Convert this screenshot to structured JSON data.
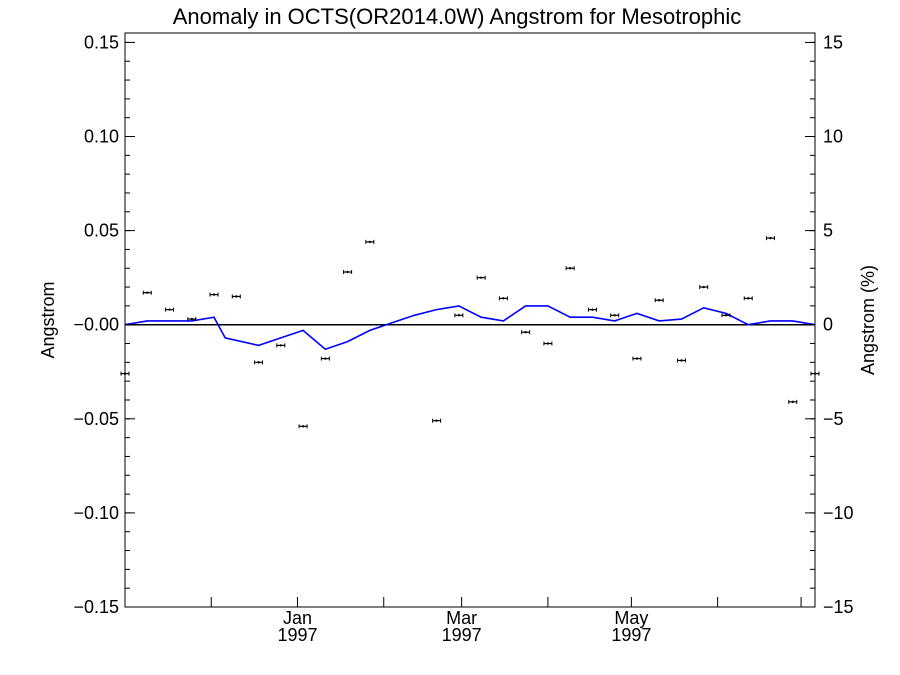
{
  "chart_data": {
    "type": "scatter",
    "title": "Anomaly in OCTS(OR2014.0W) Angstrom for Mesotrophic",
    "ylabel": "Angstrom",
    "y2label": "Angstrom (%)",
    "ylim": [
      -0.15,
      0.155
    ],
    "y2lim": [
      -15,
      15
    ],
    "y_ticks": [
      "-0.15",
      "-0.10",
      "-0.05",
      "-0.00",
      "0.05",
      "0.10",
      "0.15"
    ],
    "y2_ticks": [
      "-15",
      "-10",
      "-5",
      "0",
      "5",
      "10",
      "15"
    ],
    "x_ticks": [
      {
        "month": "Jan",
        "year": "1997"
      },
      {
        "month": "Mar",
        "year": "1997"
      },
      {
        "month": "May",
        "year": "1997"
      }
    ],
    "reference_line": 0,
    "colors": {
      "points": "#000000",
      "line": "#0000ff",
      "zero": "#000000"
    },
    "series": [
      {
        "kind": "points-with-error-bars",
        "points": [
          {
            "x": "1996-10-31",
            "y": -0.026
          },
          {
            "x": "1996-11-08",
            "y": 0.017
          },
          {
            "x": "1996-11-16",
            "y": 0.008
          },
          {
            "x": "1996-11-24",
            "y": 0.003
          },
          {
            "x": "1996-12-02",
            "y": 0.016
          },
          {
            "x": "1996-12-10",
            "y": 0.015
          },
          {
            "x": "1996-12-18",
            "y": -0.02
          },
          {
            "x": "1996-12-26",
            "y": -0.011
          },
          {
            "x": "1997-01-03",
            "y": -0.054
          },
          {
            "x": "1997-01-11",
            "y": -0.018
          },
          {
            "x": "1997-01-19",
            "y": 0.028
          },
          {
            "x": "1997-01-27",
            "y": 0.044
          },
          {
            "x": "1997-02-20",
            "y": -0.051
          },
          {
            "x": "1997-02-28",
            "y": 0.005
          },
          {
            "x": "1997-03-08",
            "y": 0.025
          },
          {
            "x": "1997-03-16",
            "y": 0.014
          },
          {
            "x": "1997-03-24",
            "y": -0.004
          },
          {
            "x": "1997-04-01",
            "y": -0.01
          },
          {
            "x": "1997-04-09",
            "y": 0.03
          },
          {
            "x": "1997-04-17",
            "y": 0.008
          },
          {
            "x": "1997-04-25",
            "y": 0.005
          },
          {
            "x": "1997-05-03",
            "y": -0.018
          },
          {
            "x": "1997-05-11",
            "y": 0.013
          },
          {
            "x": "1997-05-19",
            "y": -0.019
          },
          {
            "x": "1997-05-27",
            "y": 0.02
          },
          {
            "x": "1997-06-04",
            "y": 0.005
          },
          {
            "x": "1997-06-12",
            "y": 0.014
          },
          {
            "x": "1997-06-20",
            "y": 0.046
          },
          {
            "x": "1997-06-28",
            "y": -0.041
          },
          {
            "x": "1997-07-06",
            "y": -0.026
          }
        ]
      },
      {
        "kind": "line",
        "points": [
          {
            "x": "1996-10-31",
            "y": 0.0
          },
          {
            "x": "1996-11-08",
            "y": 0.002
          },
          {
            "x": "1996-11-16",
            "y": 0.002
          },
          {
            "x": "1996-11-24",
            "y": 0.002
          },
          {
            "x": "1996-12-02",
            "y": 0.004
          },
          {
            "x": "1996-12-06",
            "y": -0.007
          },
          {
            "x": "1996-12-18",
            "y": -0.011
          },
          {
            "x": "1996-12-26",
            "y": -0.007
          },
          {
            "x": "1997-01-03",
            "y": -0.003
          },
          {
            "x": "1997-01-11",
            "y": -0.013
          },
          {
            "x": "1997-01-19",
            "y": -0.009
          },
          {
            "x": "1997-01-27",
            "y": -0.003
          },
          {
            "x": "1997-02-04",
            "y": 0.001
          },
          {
            "x": "1997-02-12",
            "y": 0.005
          },
          {
            "x": "1997-02-20",
            "y": 0.008
          },
          {
            "x": "1997-02-28",
            "y": 0.01
          },
          {
            "x": "1997-03-08",
            "y": 0.004
          },
          {
            "x": "1997-03-16",
            "y": 0.002
          },
          {
            "x": "1997-03-24",
            "y": 0.01
          },
          {
            "x": "1997-04-01",
            "y": 0.01
          },
          {
            "x": "1997-04-09",
            "y": 0.004
          },
          {
            "x": "1997-04-17",
            "y": 0.004
          },
          {
            "x": "1997-04-25",
            "y": 0.002
          },
          {
            "x": "1997-05-03",
            "y": 0.006
          },
          {
            "x": "1997-05-11",
            "y": 0.002
          },
          {
            "x": "1997-05-19",
            "y": 0.003
          },
          {
            "x": "1997-05-27",
            "y": 0.009
          },
          {
            "x": "1997-06-04",
            "y": 0.006
          },
          {
            "x": "1997-06-12",
            "y": 0.0
          },
          {
            "x": "1997-06-20",
            "y": 0.002
          },
          {
            "x": "1997-06-28",
            "y": 0.002
          },
          {
            "x": "1997-07-06",
            "y": 0.0
          }
        ]
      }
    ]
  }
}
